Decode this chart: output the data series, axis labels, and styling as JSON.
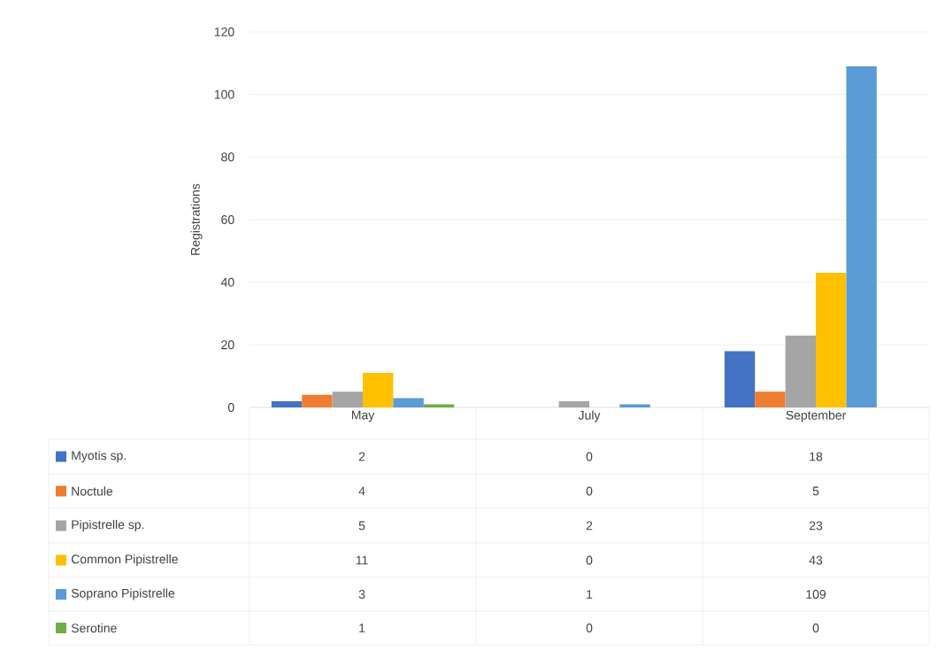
{
  "chart_data": {
    "type": "bar",
    "ylabel": "Registrations",
    "categories": [
      "May",
      "July",
      "September"
    ],
    "series": [
      {
        "name": "Myotis sp.",
        "color": "#4472c4",
        "values": [
          2,
          0,
          18
        ]
      },
      {
        "name": "Noctule",
        "color": "#ed7d31",
        "values": [
          4,
          0,
          5
        ]
      },
      {
        "name": "Pipistrelle sp.",
        "color": "#a5a5a5",
        "values": [
          5,
          2,
          23
        ]
      },
      {
        "name": "Common Pipistrelle",
        "color": "#ffc000",
        "values": [
          11,
          0,
          43
        ]
      },
      {
        "name": "Soprano Pipistrelle",
        "color": "#5b9bd5",
        "values": [
          3,
          1,
          109
        ]
      },
      {
        "name": "Serotine",
        "color": "#70ad47",
        "values": [
          1,
          0,
          0
        ]
      }
    ],
    "ylim": [
      0,
      120
    ],
    "yticks": [
      0,
      20,
      40,
      60,
      80,
      100,
      120
    ],
    "grid": "y",
    "legend": "bottom",
    "data_labels": true
  }
}
